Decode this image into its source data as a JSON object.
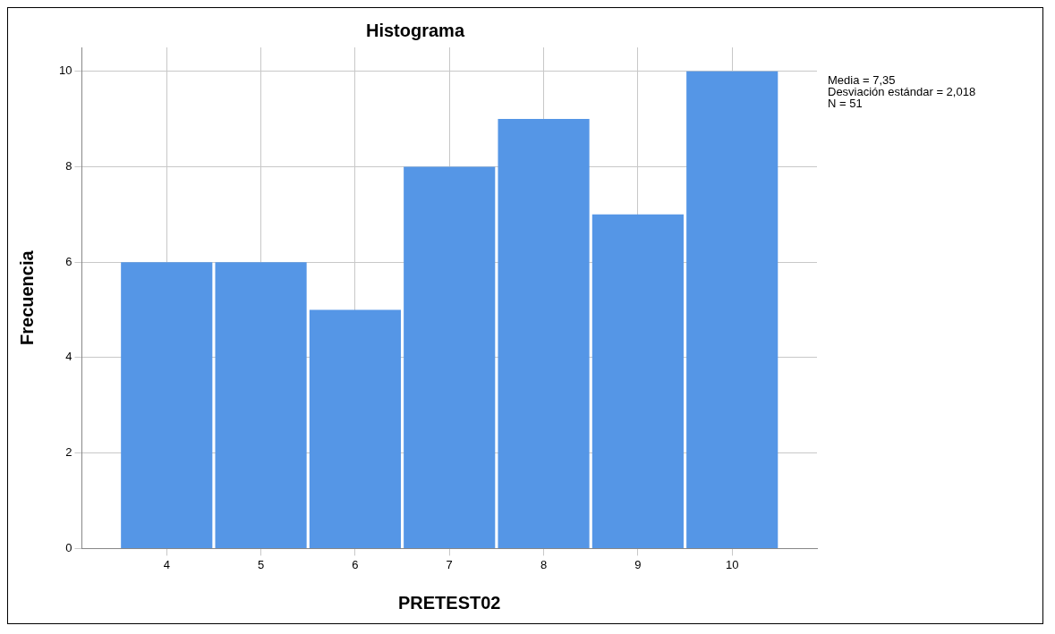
{
  "chart_data": {
    "type": "histogram",
    "title": "Histograma",
    "xlabel": "PRETEST02",
    "ylabel": "Frecuencia",
    "bins": [
      3.5,
      4.5,
      5.5,
      6.5,
      7.5,
      8.5,
      9.5,
      10.5
    ],
    "values": [
      6,
      6,
      5,
      8,
      9,
      7,
      10
    ],
    "color": "#5596e6",
    "xlim": [
      3.1,
      10.9
    ],
    "xticks": [
      4,
      5,
      6,
      7,
      8,
      9,
      10
    ],
    "ylim": [
      0,
      10.5
    ],
    "yticks": [
      0,
      2,
      4,
      6,
      8,
      10
    ],
    "grid": true,
    "annotations": [
      "Media = 7,35",
      "Desviación estándar = 2,018",
      "N = 51"
    ]
  }
}
